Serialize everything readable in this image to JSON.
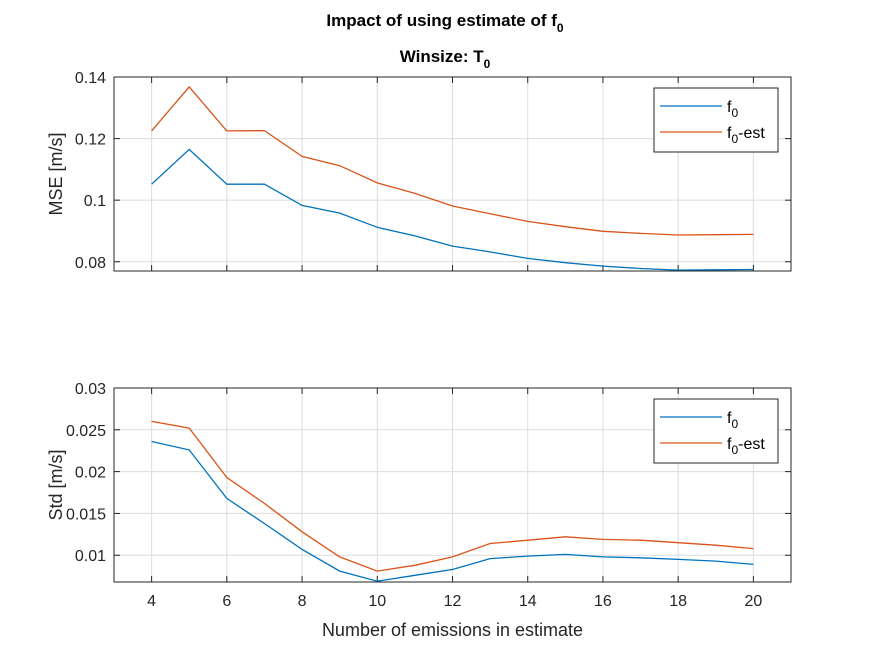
{
  "figure": {
    "title_main": "Impact of using estimate of f",
    "title_main_sub": "0",
    "title_line2": "Winsize: T",
    "title_line2_sub": "0",
    "colors": {
      "f0": "#0072BD",
      "f0_est": "#D95319"
    }
  },
  "chart_data": [
    {
      "type": "line",
      "ylabel": "MSE [m/s]",
      "xlabel": "",
      "xlim": [
        3,
        21
      ],
      "ylim": [
        0.077,
        0.14
      ],
      "x": [
        4,
        5,
        6,
        7,
        8,
        9,
        10,
        11,
        12,
        13,
        14,
        15,
        16,
        17,
        18,
        19,
        20
      ],
      "xticks": [
        "4",
        "6",
        "8",
        "10",
        "12",
        "14",
        "16",
        "18",
        "20"
      ],
      "yticks": [
        "0.08",
        "0.1",
        "0.12",
        "0.14"
      ],
      "yticks_values": [
        0.08,
        0.1,
        0.12,
        0.14
      ],
      "grid": true,
      "legend_position": "top-right",
      "series": [
        {
          "name": "f",
          "name_sub": "0",
          "color": "#0072BD",
          "values": [
            0.1052,
            0.1165,
            0.1052,
            0.1052,
            0.0983,
            0.0958,
            0.0912,
            0.0884,
            0.0851,
            0.0832,
            0.0811,
            0.0797,
            0.0786,
            0.0778,
            0.0773,
            0.0774,
            0.0775
          ]
        },
        {
          "name": "f",
          "name_sub": "0",
          "name_suffix": "-est",
          "color": "#D95319",
          "values": [
            0.1225,
            0.1368,
            0.1225,
            0.1226,
            0.1142,
            0.1112,
            0.1056,
            0.1022,
            0.0981,
            0.0956,
            0.0931,
            0.0914,
            0.0899,
            0.0892,
            0.0887,
            0.0888,
            0.0889
          ]
        }
      ]
    },
    {
      "type": "line",
      "ylabel": "Std [m/s]",
      "xlabel": "Number of emissions in estimate",
      "xlim": [
        3,
        21
      ],
      "ylim": [
        0.0068,
        0.03
      ],
      "x": [
        4,
        5,
        6,
        7,
        8,
        9,
        10,
        11,
        12,
        13,
        14,
        15,
        16,
        17,
        18,
        19,
        20
      ],
      "xticks": [
        "4",
        "6",
        "8",
        "10",
        "12",
        "14",
        "16",
        "18",
        "20"
      ],
      "yticks": [
        "0.01",
        "0.015",
        "0.02",
        "0.025",
        "0.03"
      ],
      "yticks_values": [
        0.01,
        0.015,
        0.02,
        0.025,
        0.03
      ],
      "grid": true,
      "legend_position": "top-right",
      "series": [
        {
          "name": "f",
          "name_sub": "0",
          "color": "#0072BD",
          "values": [
            0.0236,
            0.0226,
            0.0168,
            0.0138,
            0.0107,
            0.0081,
            0.0069,
            0.0076,
            0.0083,
            0.0096,
            0.0099,
            0.0101,
            0.0098,
            0.0097,
            0.0095,
            0.0093,
            0.0089
          ]
        },
        {
          "name": "f",
          "name_sub": "0",
          "name_suffix": "-est",
          "color": "#D95319",
          "values": [
            0.026,
            0.0252,
            0.0193,
            0.0162,
            0.0128,
            0.0098,
            0.0081,
            0.0088,
            0.0098,
            0.0114,
            0.0118,
            0.0122,
            0.0119,
            0.0118,
            0.0115,
            0.0112,
            0.0108
          ]
        }
      ]
    }
  ]
}
